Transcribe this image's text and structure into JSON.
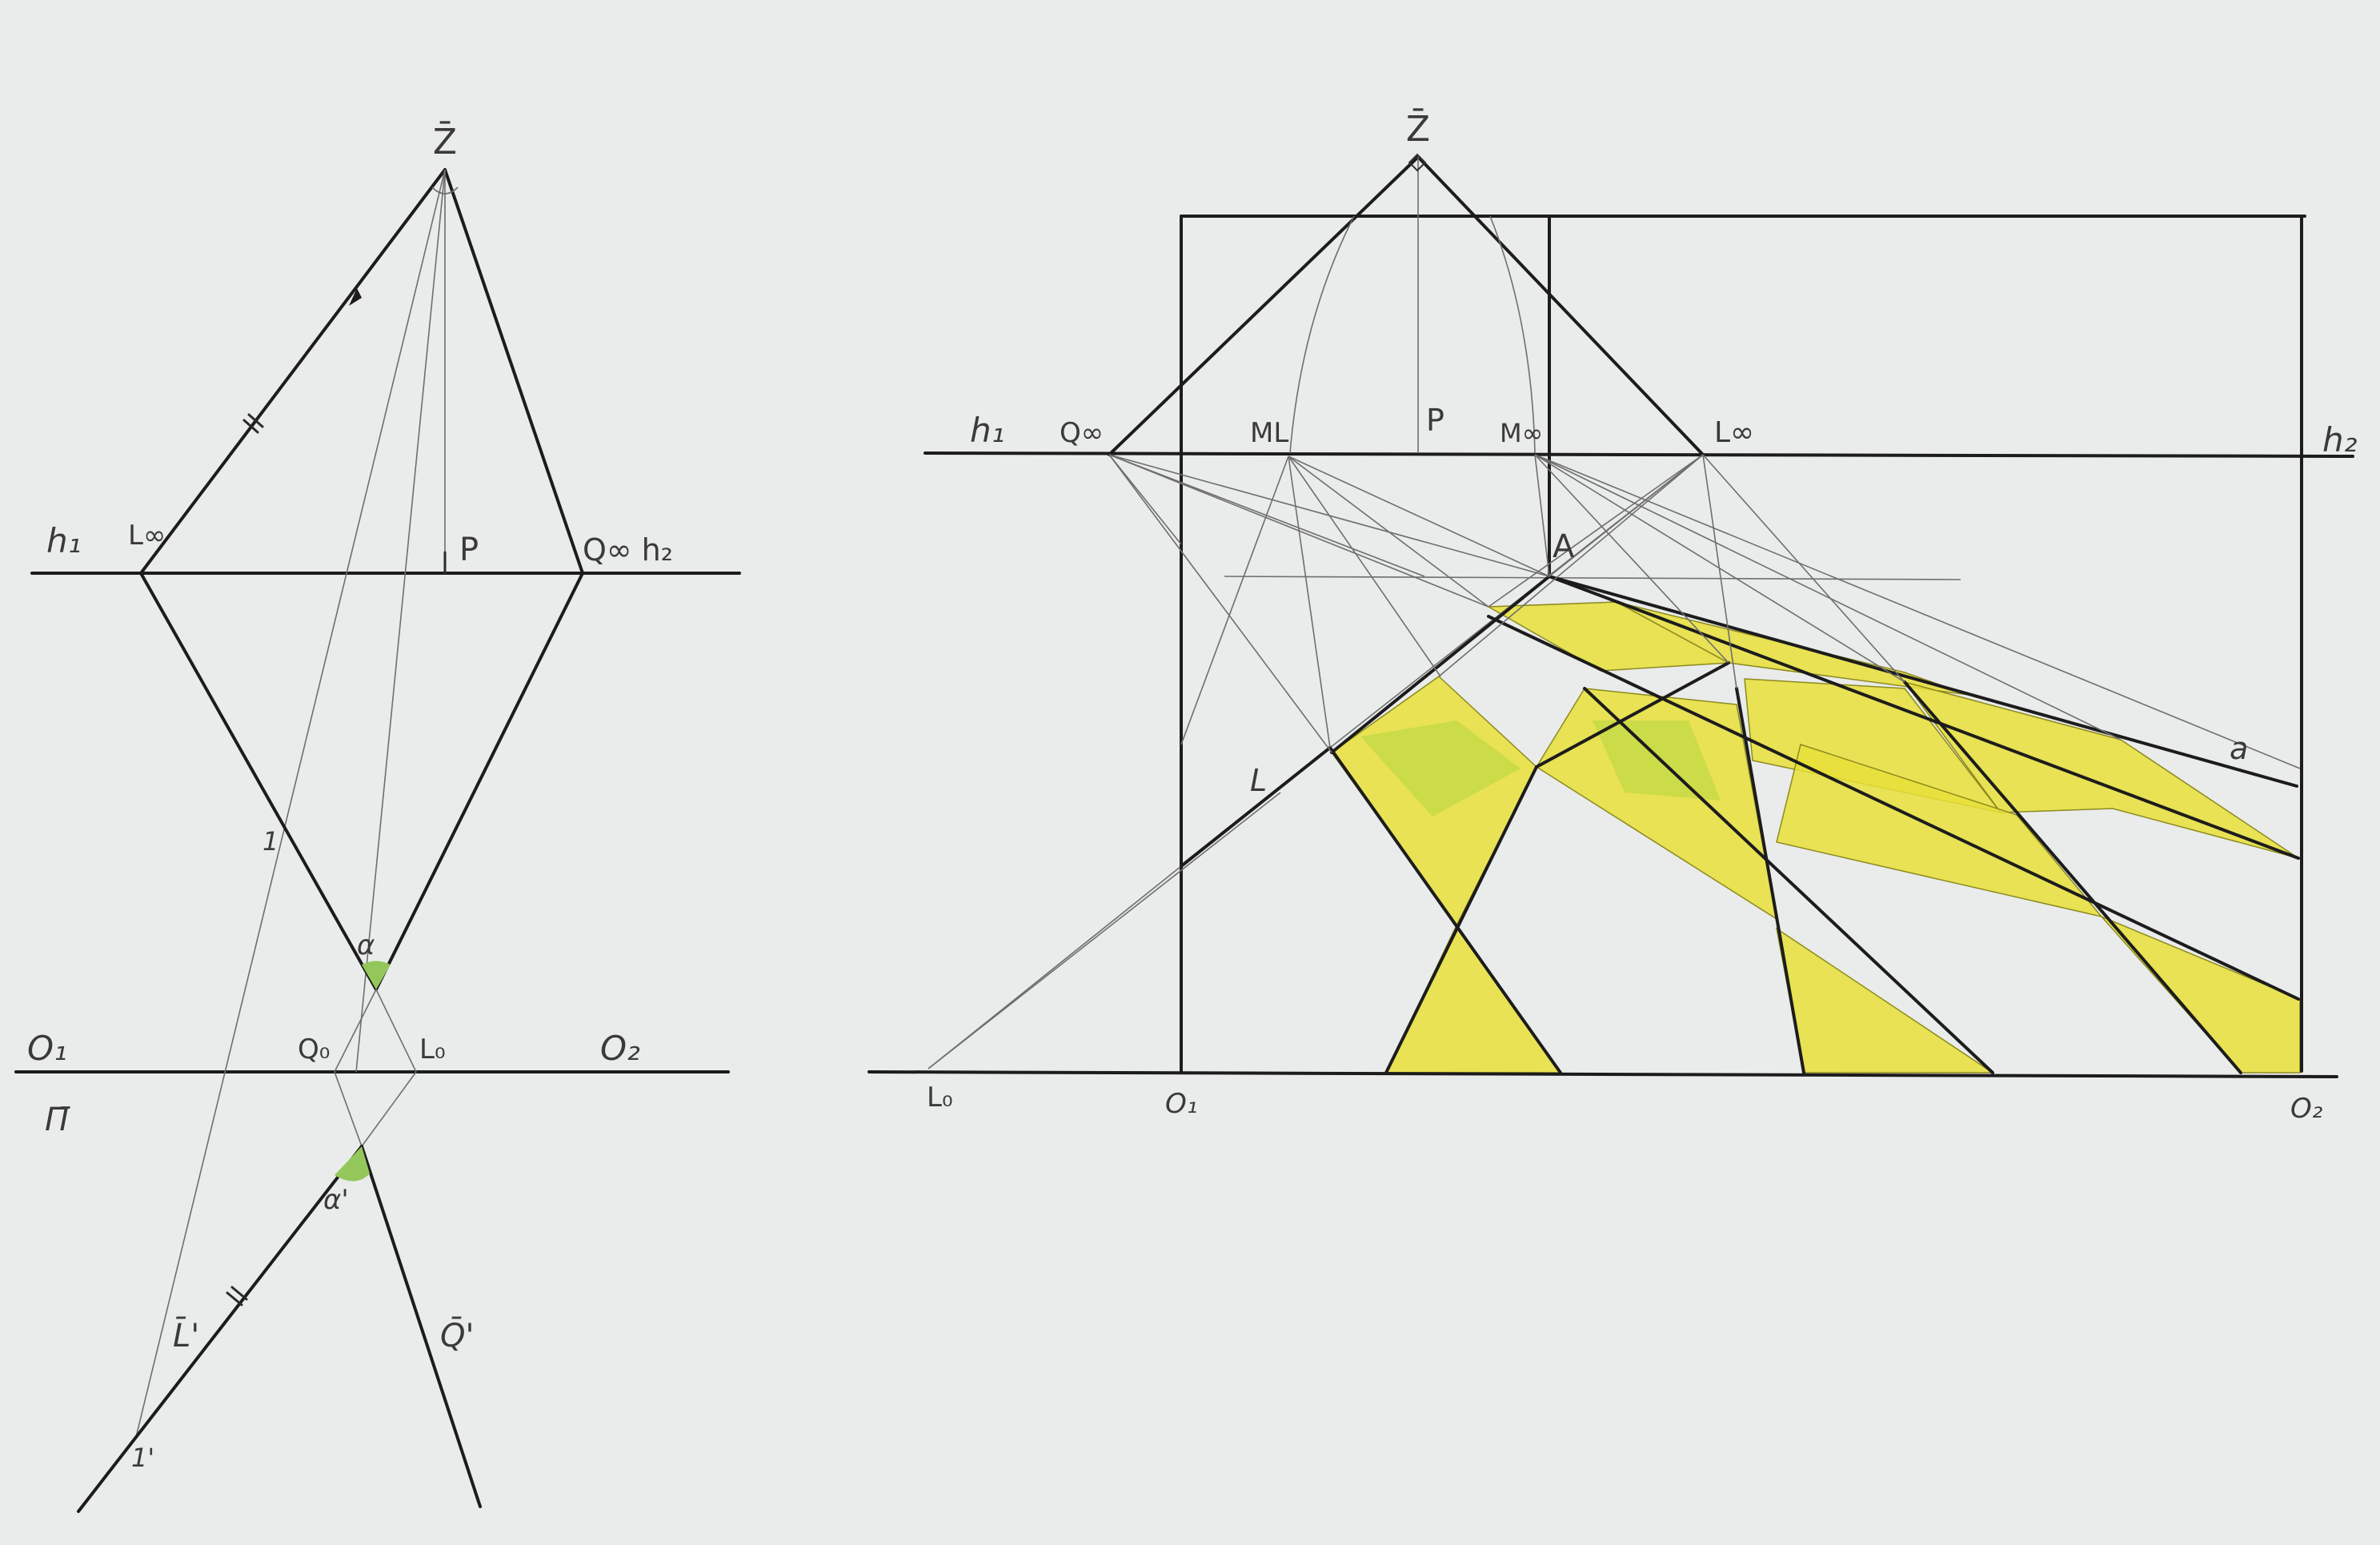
{
  "left": {
    "Z": "Z̄",
    "h1": "h₁",
    "L_inf": "L∞",
    "P": "P",
    "Q_inf_h2": "Q∞  h₂",
    "O1": "O₁",
    "Q0": "Q₀",
    "L0": "L₀",
    "O2": "O₂",
    "Pi": "Π̄",
    "alpha": "α",
    "alpha_prime": "α'",
    "one": "1",
    "one_prime": "1'",
    "L_prime": "L̄'",
    "Q_prime": "Q̄'"
  },
  "right": {
    "Z": "Z̄",
    "h1": "h₁",
    "Q_inf": "Q∞",
    "ML": "ML",
    "P": "P",
    "M_inf": "M∞",
    "L_inf": "L∞",
    "h2": "h₂",
    "A": "A",
    "L": "L",
    "a": "a",
    "L0": "L₀",
    "O1": "O₁",
    "O2": "O₂"
  },
  "colors": {
    "paper": "#e9ecea",
    "ink": "#1c1c1c",
    "pencil": "#6e6e6e",
    "yellow": "#e8e03a",
    "green": "#93c75b"
  }
}
